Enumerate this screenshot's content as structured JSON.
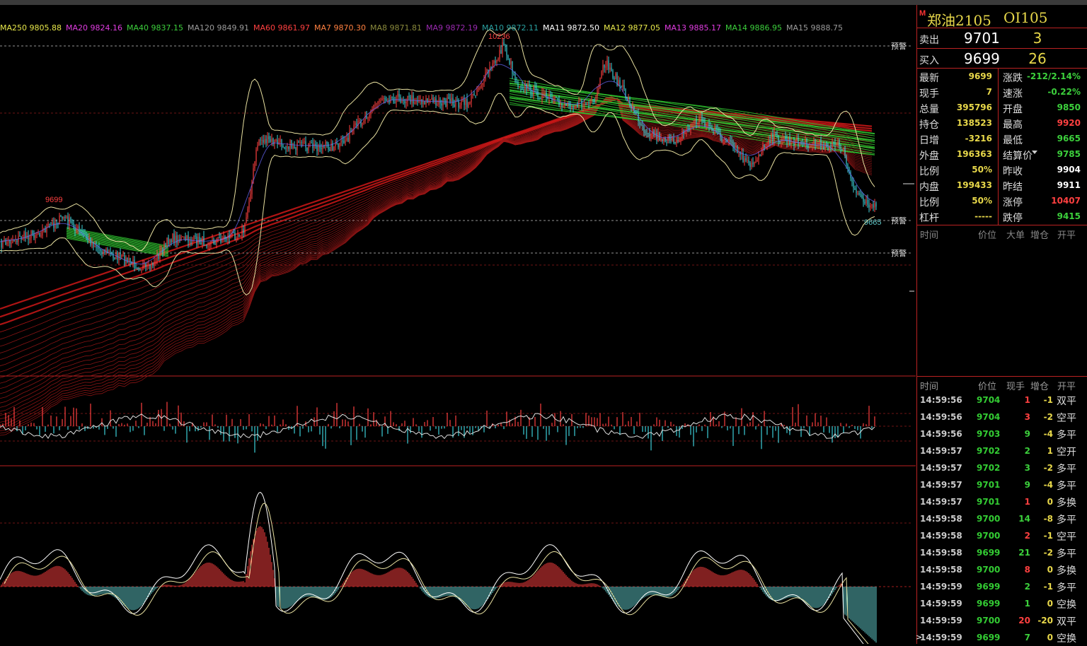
{
  "app": {
    "instrument_name": "郑油2105",
    "instrument_code": "OI105",
    "flag": "M"
  },
  "ma_legend": [
    {
      "label": "MA250",
      "value": "9805.88",
      "color": "#e8e84a"
    },
    {
      "label": "MA20",
      "value": "9824.16",
      "color": "#e03ce0"
    },
    {
      "label": "MA40",
      "value": "9837.15",
      "color": "#3cd03c"
    },
    {
      "label": "MA120",
      "value": "9849.91",
      "color": "#9a9a9a"
    },
    {
      "label": "MA60",
      "value": "9861.97",
      "color": "#ff4040"
    },
    {
      "label": "MA7",
      "value": "9870.30",
      "color": "#ff8040"
    },
    {
      "label": "MA8",
      "value": "9871.81",
      "color": "#8a8a3c"
    },
    {
      "label": "MA9",
      "value": "9872.19",
      "color": "#9a2ab0"
    },
    {
      "label": "MA10",
      "value": "9872.11",
      "color": "#2aa0a0"
    },
    {
      "label": "MA11",
      "value": "9872.50",
      "color": "#ffffff"
    },
    {
      "label": "MA12",
      "value": "9877.05",
      "color": "#e8e84a"
    },
    {
      "label": "MA13",
      "value": "9885.17",
      "color": "#e03ce0"
    },
    {
      "label": "MA14",
      "value": "9886.95",
      "color": "#3cd03c"
    },
    {
      "label": "MA15",
      "value": "9888.75",
      "color": "#9a9a9a"
    }
  ],
  "main_chart": {
    "high_label": "10236",
    "left_high_label": "9699",
    "low_label": "9665",
    "alert_label": "预警",
    "colors": {
      "up": "#ff4040",
      "down": "#3cd0d8",
      "band": "#e8e0a0",
      "grid": "#8a1a1a",
      "alert": "#bbbbbb"
    }
  },
  "order_book": {
    "sell": {
      "label": "卖出",
      "price": "9701",
      "qty": "3"
    },
    "buy": {
      "label": "买入",
      "price": "9699",
      "qty": "26"
    }
  },
  "stats_left": [
    {
      "label": "最新",
      "value": "9699",
      "color": "#e8d84a"
    },
    {
      "label": "现手",
      "value": "7",
      "color": "#e8d84a"
    },
    {
      "label": "总量",
      "value": "395796",
      "color": "#e8d84a"
    },
    {
      "label": "持仓",
      "value": "138523",
      "color": "#e8d84a"
    },
    {
      "label": "日增",
      "value": "-3216",
      "color": "#e8d84a"
    },
    {
      "label": "外盘",
      "value": "196363",
      "color": "#e8d84a"
    },
    {
      "label": "比例",
      "value": "50%",
      "color": "#e8d84a"
    },
    {
      "label": "内盘",
      "value": "199433",
      "color": "#e8d84a"
    },
    {
      "label": "比例",
      "value": "50%",
      "color": "#e8d84a"
    },
    {
      "label": "杠杆",
      "value": "-----",
      "color": "#e8d84a"
    }
  ],
  "stats_right": [
    {
      "label": "涨跌",
      "value": "-212/2.14%",
      "color": "#3cd03c"
    },
    {
      "label": "速涨",
      "value": "-0.22%",
      "color": "#3cd03c"
    },
    {
      "label": "开盘",
      "value": "9850",
      "color": "#3cd03c"
    },
    {
      "label": "最高",
      "value": "9920",
      "color": "#ff4040"
    },
    {
      "label": "最低",
      "value": "9665",
      "color": "#3cd03c"
    },
    {
      "label": "结算价",
      "value": "9785",
      "color": "#3cd03c",
      "dropdown": true
    },
    {
      "label": "昨收",
      "value": "9904",
      "color": "#ffffff"
    },
    {
      "label": "昨结",
      "value": "9911",
      "color": "#ffffff"
    },
    {
      "label": "涨停",
      "value": "10407",
      "color": "#ff4040"
    },
    {
      "label": "跌停",
      "value": "9415",
      "color": "#3cd03c"
    }
  ],
  "tick_header": {
    "time": "时间",
    "price": "价位",
    "big": "大单",
    "oi": "增仓",
    "type": "开平"
  },
  "trade_header": {
    "time": "时间",
    "price": "价位",
    "hand": "现手",
    "oi": "增仓",
    "type": "开平"
  },
  "trades": [
    {
      "time": "14:59:56",
      "price": "9704",
      "hand": "1",
      "oi": "-1",
      "type": "双平",
      "side": "up"
    },
    {
      "time": "14:59:56",
      "price": "9704",
      "hand": "3",
      "oi": "-2",
      "type": "空平",
      "side": "up"
    },
    {
      "time": "14:59:56",
      "price": "9703",
      "hand": "9",
      "oi": "-4",
      "type": "多平",
      "side": "down"
    },
    {
      "time": "14:59:57",
      "price": "9702",
      "hand": "2",
      "oi": "1",
      "type": "空开",
      "side": "down"
    },
    {
      "time": "14:59:57",
      "price": "9702",
      "hand": "3",
      "oi": "-2",
      "type": "多平",
      "side": "down"
    },
    {
      "time": "14:59:57",
      "price": "9701",
      "hand": "9",
      "oi": "-4",
      "type": "多平",
      "side": "down"
    },
    {
      "time": "14:59:57",
      "price": "9701",
      "hand": "1",
      "oi": "0",
      "type": "多换",
      "side": "up"
    },
    {
      "time": "14:59:58",
      "price": "9700",
      "hand": "14",
      "oi": "-8",
      "type": "多平",
      "side": "down"
    },
    {
      "time": "14:59:58",
      "price": "9700",
      "hand": "2",
      "oi": "-1",
      "type": "空平",
      "side": "up"
    },
    {
      "time": "14:59:58",
      "price": "9699",
      "hand": "21",
      "oi": "-2",
      "type": "多平",
      "side": "down"
    },
    {
      "time": "14:59:58",
      "price": "9700",
      "hand": "8",
      "oi": "0",
      "type": "多换",
      "side": "up"
    },
    {
      "time": "14:59:59",
      "price": "9699",
      "hand": "2",
      "oi": "-1",
      "type": "多平",
      "side": "down"
    },
    {
      "time": "14:59:59",
      "price": "9699",
      "hand": "1",
      "oi": "0",
      "type": "空换",
      "side": "down"
    },
    {
      "time": "14:59:59",
      "price": "9700",
      "hand": "20",
      "oi": "-20",
      "type": "双平",
      "side": "up"
    },
    {
      "time": "14:59:59",
      "price": "9699",
      "hand": "7",
      "oi": "0",
      "type": "空换",
      "side": "down"
    }
  ],
  "cursor_glyph": ">"
}
